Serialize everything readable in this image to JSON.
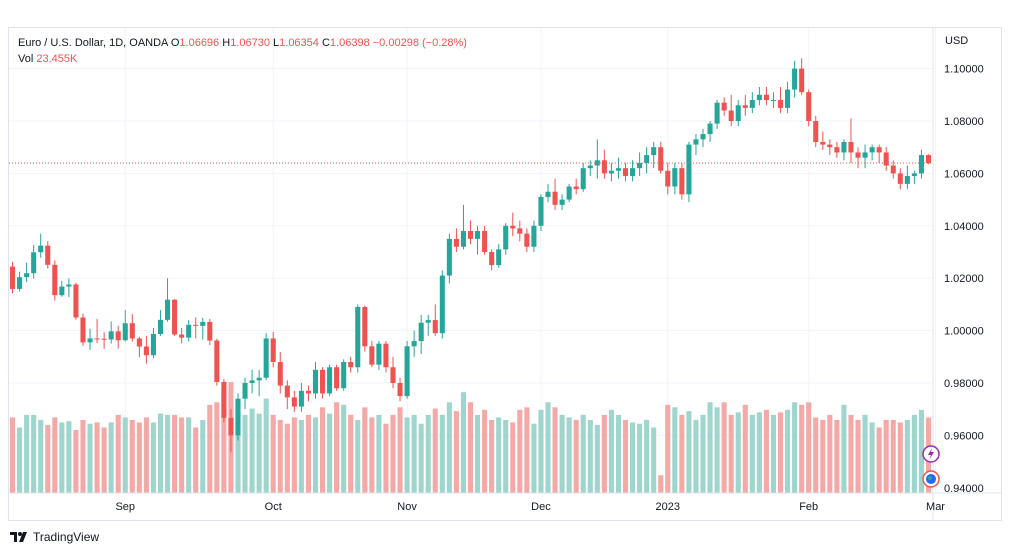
{
  "legend": {
    "symbol": "Euro / U.S. Dollar, 1D, OANDA",
    "o_label": "O",
    "o_val": "1.06696",
    "h_label": "H",
    "h_val": "1.06730",
    "l_label": "L",
    "l_val": "1.06354",
    "c_label": "C",
    "c_val": "1.06398",
    "change": "−0.00298 (−0.28%)",
    "vol_label": "Vol",
    "vol_val": "23.455K"
  },
  "footer": {
    "brand": "TradingView"
  },
  "colors": {
    "up": "#26a69a",
    "down": "#ef5350",
    "vol_up": "#9ed5cd",
    "vol_down": "#f4a9a7",
    "grid": "#f0f3fa",
    "price_line": "#ef5350"
  },
  "chart_data": {
    "type": "candlestick",
    "title": "Euro / U.S. Dollar, 1D, OANDA",
    "currency_label": "USD",
    "y_ticks": [
      "1.10000",
      "1.08000",
      "1.06000",
      "1.04000",
      "1.02000",
      "1.00000",
      "0.98000",
      "0.96000",
      "0.94000"
    ],
    "ylim": [
      0.938,
      1.1155
    ],
    "x_labels": [
      "Sep",
      "Oct",
      "Nov",
      "Dec",
      "2023",
      "Feb",
      "Mar"
    ],
    "x_label_index": [
      16,
      37,
      56,
      75,
      93,
      113,
      131
    ],
    "last_close": 1.06398,
    "grid": true,
    "volume_overlay": true,
    "candles": [
      [
        1.0244,
        1.0262,
        1.0142,
        1.0159,
        60
      ],
      [
        1.0159,
        1.0225,
        1.0149,
        1.0204,
        52
      ],
      [
        1.0204,
        1.0259,
        1.0185,
        1.0219,
        62
      ],
      [
        1.0219,
        1.0327,
        1.0199,
        1.0299,
        62
      ],
      [
        1.0299,
        1.037,
        1.0278,
        1.0324,
        58
      ],
      [
        1.0324,
        1.0342,
        1.0237,
        1.0251,
        54
      ],
      [
        1.0251,
        1.0268,
        1.0115,
        1.0135,
        60
      ],
      [
        1.0135,
        1.019,
        1.0129,
        1.0168,
        56
      ],
      [
        1.0168,
        1.0199,
        1.0128,
        1.0176,
        57
      ],
      [
        1.0176,
        1.0183,
        1.0041,
        1.005,
        50
      ],
      [
        1.005,
        1.0065,
        0.9942,
        0.9955,
        58
      ],
      [
        0.9955,
        1.0007,
        0.9926,
        0.997,
        55
      ],
      [
        0.997,
        1.0045,
        0.9952,
        0.9969,
        56
      ],
      [
        0.9969,
        0.9994,
        0.993,
        0.9966,
        52
      ],
      [
        0.9966,
        1.0035,
        0.995,
        0.9997,
        56
      ],
      [
        0.9997,
        1.0018,
        0.9931,
        0.9963,
        62
      ],
      [
        0.9963,
        1.0078,
        0.9958,
        1.0028,
        60
      ],
      [
        1.0028,
        1.0063,
        0.9957,
        0.997,
        58
      ],
      [
        0.997,
        0.9976,
        0.9898,
        0.9939,
        56
      ],
      [
        0.9939,
        0.998,
        0.9874,
        0.9906,
        60
      ],
      [
        0.9906,
        1.001,
        0.9895,
        0.9987,
        56
      ],
      [
        0.9987,
        1.0078,
        0.998,
        1.0041,
        63
      ],
      [
        1.0041,
        1.02,
        1.0034,
        1.0118,
        62
      ],
      [
        1.0118,
        1.012,
        0.998,
        0.9985,
        62
      ],
      [
        0.9985,
        1.001,
        0.9951,
        0.9973,
        60
      ],
      [
        0.9973,
        1.004,
        0.9958,
        1.0022,
        60
      ],
      [
        1.0022,
        1.005,
        0.997,
        1.0018,
        52
      ],
      [
        1.0018,
        1.0048,
        0.9965,
        1.0033,
        58
      ],
      [
        1.0033,
        1.0044,
        0.9945,
        0.9962,
        70
      ],
      [
        0.9962,
        0.9969,
        0.979,
        0.9804,
        72
      ],
      [
        0.9804,
        0.9815,
        0.965,
        0.9667,
        80
      ],
      [
        0.9667,
        0.97,
        0.9536,
        0.96,
        88
      ],
      [
        0.96,
        0.976,
        0.958,
        0.974,
        72
      ],
      [
        0.974,
        0.982,
        0.97,
        0.98,
        62
      ],
      [
        0.98,
        0.985,
        0.976,
        0.981,
        67
      ],
      [
        0.981,
        0.985,
        0.975,
        0.982,
        63
      ],
      [
        0.982,
        0.999,
        0.981,
        0.997,
        75
      ],
      [
        0.997,
        0.9995,
        0.986,
        0.988,
        62
      ],
      [
        0.988,
        0.9918,
        0.976,
        0.979,
        58
      ],
      [
        0.979,
        0.981,
        0.97,
        0.9745,
        55
      ],
      [
        0.9745,
        0.977,
        0.969,
        0.971,
        60
      ],
      [
        0.971,
        0.98,
        0.969,
        0.977,
        58
      ],
      [
        0.977,
        0.979,
        0.973,
        0.976,
        62
      ],
      [
        0.976,
        0.988,
        0.974,
        0.985,
        60
      ],
      [
        0.985,
        0.986,
        0.974,
        0.976,
        68
      ],
      [
        0.976,
        0.987,
        0.975,
        0.986,
        63
      ],
      [
        0.986,
        0.987,
        0.977,
        0.978,
        72
      ],
      [
        0.978,
        0.989,
        0.977,
        0.988,
        70
      ],
      [
        0.988,
        0.99,
        0.984,
        0.986,
        62
      ],
      [
        0.986,
        1.01,
        0.984,
        1.009,
        58
      ],
      [
        1.009,
        1.0095,
        0.992,
        0.994,
        68
      ],
      [
        0.994,
        0.996,
        0.986,
        0.987,
        60
      ],
      [
        0.987,
        0.996,
        0.985,
        0.995,
        62
      ],
      [
        0.995,
        0.996,
        0.984,
        0.986,
        55
      ],
      [
        0.986,
        0.99,
        0.978,
        0.98,
        62
      ],
      [
        0.98,
        0.982,
        0.973,
        0.975,
        68
      ],
      [
        0.975,
        0.996,
        0.974,
        0.994,
        60
      ],
      [
        0.994,
        1.0,
        0.99,
        0.996,
        62
      ],
      [
        0.996,
        1.006,
        0.991,
        1.003,
        55
      ],
      [
        1.003,
        1.006,
        0.998,
        1.004,
        62
      ],
      [
        1.004,
        1.01,
        0.998,
        0.999,
        67
      ],
      [
        0.999,
        1.023,
        0.997,
        1.021,
        62
      ],
      [
        1.021,
        1.037,
        1.018,
        1.035,
        72
      ],
      [
        1.035,
        1.039,
        1.03,
        1.032,
        65
      ],
      [
        1.032,
        1.048,
        1.031,
        1.038,
        80
      ],
      [
        1.038,
        1.042,
        1.033,
        1.035,
        72
      ],
      [
        1.035,
        1.04,
        1.029,
        1.038,
        62
      ],
      [
        1.038,
        1.04,
        1.029,
        1.03,
        66
      ],
      [
        1.03,
        1.031,
        1.023,
        1.025,
        58
      ],
      [
        1.025,
        1.033,
        1.024,
        1.031,
        60
      ],
      [
        1.031,
        1.041,
        1.029,
        1.04,
        58
      ],
      [
        1.04,
        1.045,
        1.036,
        1.039,
        56
      ],
      [
        1.039,
        1.042,
        1.034,
        1.037,
        66
      ],
      [
        1.037,
        1.039,
        1.03,
        1.032,
        68
      ],
      [
        1.032,
        1.042,
        1.03,
        1.04,
        55
      ],
      [
        1.04,
        1.052,
        1.038,
        1.051,
        66
      ],
      [
        1.051,
        1.056,
        1.049,
        1.053,
        72
      ],
      [
        1.053,
        1.058,
        1.046,
        1.048,
        68
      ],
      [
        1.048,
        1.052,
        1.046,
        1.05,
        62
      ],
      [
        1.05,
        1.056,
        1.049,
        1.055,
        60
      ],
      [
        1.055,
        1.058,
        1.052,
        1.054,
        58
      ],
      [
        1.054,
        1.064,
        1.053,
        1.062,
        62
      ],
      [
        1.062,
        1.065,
        1.059,
        1.063,
        58
      ],
      [
        1.063,
        1.073,
        1.058,
        1.065,
        54
      ],
      [
        1.065,
        1.069,
        1.058,
        1.06,
        62
      ],
      [
        1.06,
        1.064,
        1.057,
        1.061,
        66
      ],
      [
        1.061,
        1.066,
        1.058,
        1.062,
        62
      ],
      [
        1.062,
        1.064,
        1.057,
        1.059,
        58
      ],
      [
        1.059,
        1.065,
        1.057,
        1.062,
        56
      ],
      [
        1.062,
        1.068,
        1.059,
        1.064,
        55
      ],
      [
        1.064,
        1.07,
        1.06,
        1.067,
        58
      ],
      [
        1.067,
        1.072,
        1.062,
        1.07,
        52
      ],
      [
        1.07,
        1.072,
        1.06,
        1.061,
        14
      ],
      [
        1.061,
        1.064,
        1.052,
        1.055,
        70
      ],
      [
        1.055,
        1.064,
        1.052,
        1.062,
        68
      ],
      [
        1.062,
        1.064,
        1.05,
        1.052,
        62
      ],
      [
        1.052,
        1.072,
        1.049,
        1.071,
        65
      ],
      [
        1.071,
        1.075,
        1.067,
        1.073,
        58
      ],
      [
        1.073,
        1.077,
        1.07,
        1.075,
        62
      ],
      [
        1.075,
        1.08,
        1.072,
        1.079,
        72
      ],
      [
        1.079,
        1.088,
        1.077,
        1.087,
        68
      ],
      [
        1.087,
        1.089,
        1.082,
        1.084,
        72
      ],
      [
        1.084,
        1.09,
        1.078,
        1.08,
        62
      ],
      [
        1.08,
        1.088,
        1.078,
        1.086,
        64
      ],
      [
        1.086,
        1.09,
        1.082,
        1.085,
        70
      ],
      [
        1.085,
        1.091,
        1.083,
        1.088,
        62
      ],
      [
        1.088,
        1.093,
        1.086,
        1.09,
        64
      ],
      [
        1.09,
        1.093,
        1.086,
        1.088,
        66
      ],
      [
        1.088,
        1.091,
        1.085,
        1.088,
        62
      ],
      [
        1.088,
        1.093,
        1.083,
        1.085,
        64
      ],
      [
        1.085,
        1.095,
        1.083,
        1.092,
        66
      ],
      [
        1.092,
        1.103,
        1.089,
        1.1,
        72
      ],
      [
        1.1,
        1.104,
        1.09,
        1.091,
        70
      ],
      [
        1.091,
        1.092,
        1.078,
        1.08,
        72
      ],
      [
        1.08,
        1.082,
        1.07,
        1.072,
        60
      ],
      [
        1.072,
        1.076,
        1.069,
        1.071,
        58
      ],
      [
        1.071,
        1.073,
        1.067,
        1.07,
        62
      ],
      [
        1.07,
        1.072,
        1.066,
        1.068,
        58
      ],
      [
        1.068,
        1.073,
        1.065,
        1.072,
        70
      ],
      [
        1.072,
        1.081,
        1.064,
        1.068,
        62
      ],
      [
        1.068,
        1.07,
        1.062,
        1.066,
        58
      ],
      [
        1.066,
        1.071,
        1.062,
        1.068,
        62
      ],
      [
        1.068,
        1.071,
        1.065,
        1.07,
        56
      ],
      [
        1.07,
        1.071,
        1.064,
        1.068,
        52
      ],
      [
        1.068,
        1.07,
        1.061,
        1.063,
        58
      ],
      [
        1.063,
        1.065,
        1.058,
        1.06,
        58
      ],
      [
        1.06,
        1.062,
        1.054,
        1.056,
        56
      ],
      [
        1.056,
        1.063,
        1.054,
        1.059,
        58
      ],
      [
        1.059,
        1.061,
        1.056,
        1.06,
        62
      ],
      [
        1.06,
        1.069,
        1.058,
        1.067,
        66
      ],
      [
        1.067,
        1.0673,
        1.0635,
        1.064,
        60
      ]
    ]
  }
}
